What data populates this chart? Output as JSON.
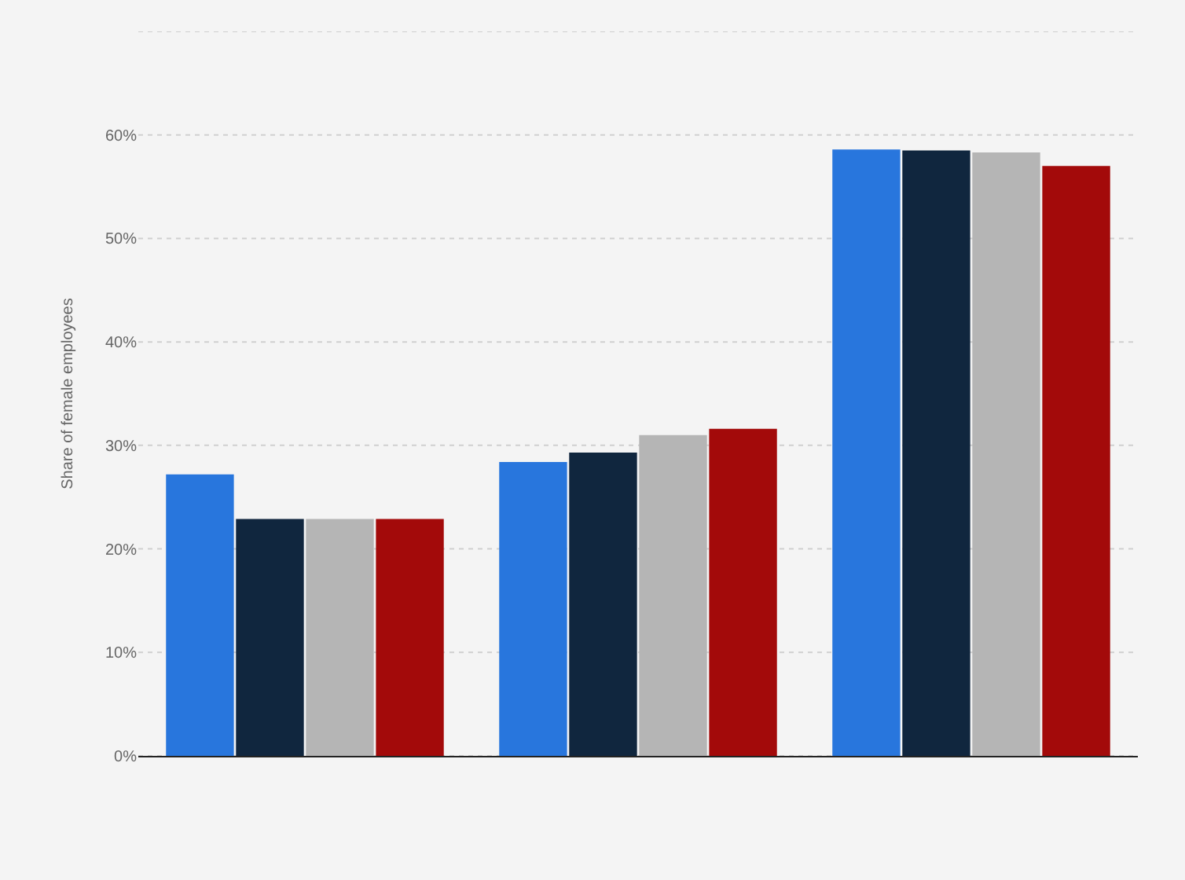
{
  "chart_data": {
    "type": "bar",
    "ylabel": "Share of female employees",
    "categories": [
      null,
      null,
      null
    ],
    "series": [
      {
        "color": "#2876dd",
        "values": [
          27.2,
          28.4,
          58.6
        ]
      },
      {
        "color": "#10263e",
        "values": [
          22.9,
          29.3,
          58.5
        ]
      },
      {
        "color": "#b5b5b5",
        "values": [
          22.9,
          31.0,
          58.3
        ]
      },
      {
        "color": "#a30a0a",
        "values": [
          22.9,
          31.6,
          57.0
        ]
      }
    ],
    "ylim": [
      0,
      70
    ],
    "yticks": [
      {
        "value": 0,
        "label": "0%"
      },
      {
        "value": 10,
        "label": "10%"
      },
      {
        "value": 20,
        "label": "20%"
      },
      {
        "value": 30,
        "label": "30%"
      },
      {
        "value": 40,
        "label": "40%"
      },
      {
        "value": 50,
        "label": "50%"
      },
      {
        "value": 60,
        "label": "60%"
      },
      {
        "value": 70,
        "label": null
      }
    ],
    "grid": "y"
  }
}
